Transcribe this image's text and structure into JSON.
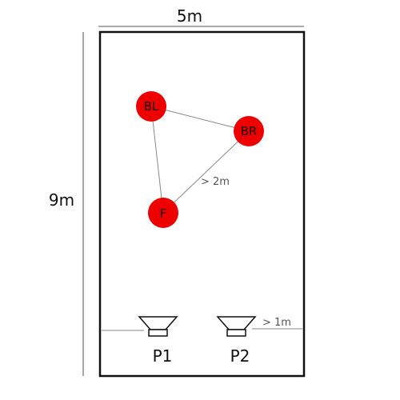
{
  "room": {
    "width_label": "5m",
    "height_label": "9m"
  },
  "nodes": [
    {
      "label": "BL"
    },
    {
      "label": "BR"
    },
    {
      "label": "F"
    }
  ],
  "distance_notes": {
    "triangle": "> 2m",
    "wall": "> 1m"
  },
  "speakers": [
    {
      "label": "P1"
    },
    {
      "label": "P2"
    }
  ],
  "colors": {
    "node_fill": "#ee0000",
    "line": "#888888",
    "wall": "#111111"
  }
}
